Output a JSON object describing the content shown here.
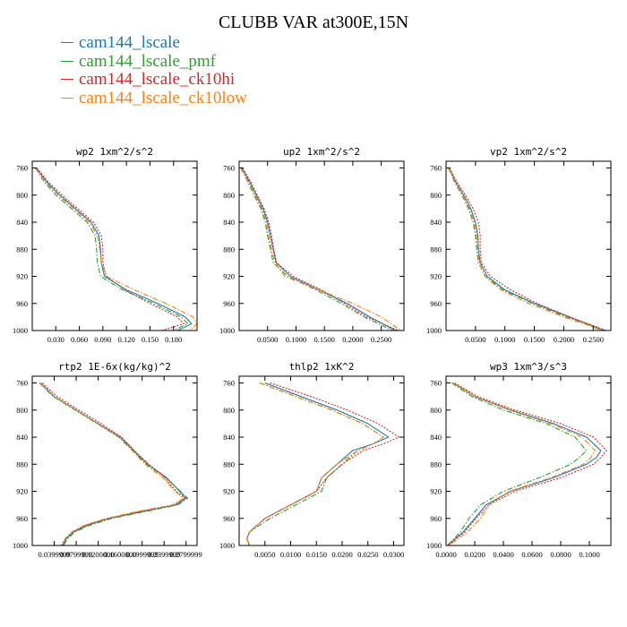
{
  "title": "CLUBB VAR at300E,15N",
  "legend": [
    {
      "label": "cam144_lscale",
      "color": "#1f77b4",
      "dash": "solid"
    },
    {
      "label": "cam144_lscale_pmf",
      "color": "#2ca02c",
      "dash": "dashdot"
    },
    {
      "label": "cam144_lscale_ck10hi",
      "color": "#d62728",
      "dash": "dotted"
    },
    {
      "label": "cam144_lscale_ck10low",
      "color": "#ff7f0e",
      "dash": "dashdot"
    }
  ],
  "chart_data": [
    {
      "type": "line",
      "title": "wp2  1xm^2/s^2",
      "ylim": [
        1000,
        750
      ],
      "yticks": [
        "760",
        "800",
        "840",
        "880",
        "920",
        "960",
        "1000"
      ],
      "xlim": [
        0.0,
        0.21
      ],
      "xticks": [
        [
          "0.030",
          0.03
        ],
        [
          "0.060",
          0.06
        ],
        [
          "0.090",
          0.09
        ],
        [
          "0.120",
          0.12
        ],
        [
          "0.150",
          0.15
        ],
        [
          "0.180",
          0.18
        ]
      ],
      "y": [
        760,
        780,
        800,
        820,
        840,
        860,
        880,
        900,
        920,
        940,
        960,
        980,
        990,
        1000
      ],
      "series": [
        {
          "name": "cam144_lscale",
          "values": [
            0.005,
            0.018,
            0.035,
            0.055,
            0.075,
            0.085,
            0.087,
            0.088,
            0.092,
            0.12,
            0.16,
            0.195,
            0.203,
            0.185
          ]
        },
        {
          "name": "cam144_lscale_pmf",
          "values": [
            0.004,
            0.015,
            0.03,
            0.05,
            0.07,
            0.08,
            0.082,
            0.083,
            0.087,
            0.115,
            0.155,
            0.19,
            0.198,
            0.18
          ]
        },
        {
          "name": "cam144_lscale_ck10hi",
          "values": [
            0.006,
            0.02,
            0.038,
            0.058,
            0.078,
            0.088,
            0.09,
            0.09,
            0.094,
            0.118,
            0.15,
            0.185,
            0.193,
            0.165
          ]
        },
        {
          "name": "cam144_lscale_ck10low",
          "values": [
            0.004,
            0.016,
            0.033,
            0.053,
            0.073,
            0.083,
            0.086,
            0.088,
            0.095,
            0.13,
            0.17,
            0.205,
            0.21,
            0.2
          ]
        }
      ]
    },
    {
      "type": "line",
      "title": "up2  1xm^2/s^2",
      "ylim": [
        1000,
        750
      ],
      "yticks": [
        "760",
        "800",
        "840",
        "880",
        "920",
        "960",
        "1000"
      ],
      "xlim": [
        0.0,
        0.29
      ],
      "xticks": [
        [
          "0.0500",
          0.05
        ],
        [
          "0.1000",
          0.1
        ],
        [
          "0.1500",
          0.15
        ],
        [
          "0.2000",
          0.2
        ],
        [
          "0.2500",
          0.25
        ]
      ],
      "y": [
        760,
        780,
        800,
        820,
        840,
        860,
        880,
        900,
        920,
        940,
        960,
        980,
        1000
      ],
      "series": [
        {
          "name": "cam144_lscale",
          "values": [
            0.005,
            0.018,
            0.03,
            0.042,
            0.05,
            0.055,
            0.06,
            0.065,
            0.09,
            0.14,
            0.19,
            0.23,
            0.275
          ]
        },
        {
          "name": "cam144_lscale_pmf",
          "values": [
            0.003,
            0.015,
            0.026,
            0.038,
            0.046,
            0.05,
            0.055,
            0.06,
            0.085,
            0.135,
            0.18,
            0.22,
            0.27
          ]
        },
        {
          "name": "cam144_lscale_ck10hi",
          "values": [
            0.006,
            0.02,
            0.032,
            0.044,
            0.052,
            0.057,
            0.061,
            0.066,
            0.095,
            0.145,
            0.185,
            0.225,
            0.28
          ]
        },
        {
          "name": "cam144_lscale_ck10low",
          "values": [
            0.004,
            0.016,
            0.028,
            0.04,
            0.048,
            0.052,
            0.057,
            0.063,
            0.08,
            0.14,
            0.2,
            0.25,
            0.285
          ]
        }
      ]
    },
    {
      "type": "line",
      "title": "vp2  1xm^2/s^2",
      "ylim": [
        1000,
        750
      ],
      "yticks": [
        "760",
        "800",
        "840",
        "880",
        "920",
        "960",
        "1000"
      ],
      "xlim": [
        0.0,
        0.28
      ],
      "xticks": [
        [
          "0.0500",
          0.05
        ],
        [
          "0.1000",
          0.1
        ],
        [
          "0.1500",
          0.15
        ],
        [
          "0.2000",
          0.2
        ],
        [
          "0.2500",
          0.25
        ]
      ],
      "y": [
        760,
        780,
        800,
        820,
        840,
        860,
        880,
        900,
        920,
        940,
        960,
        980,
        1000
      ],
      "series": [
        {
          "name": "cam144_lscale",
          "values": [
            0.005,
            0.016,
            0.03,
            0.042,
            0.05,
            0.054,
            0.055,
            0.058,
            0.07,
            0.1,
            0.15,
            0.21,
            0.27
          ]
        },
        {
          "name": "cam144_lscale_pmf",
          "values": [
            0.004,
            0.014,
            0.027,
            0.038,
            0.046,
            0.05,
            0.052,
            0.055,
            0.067,
            0.097,
            0.147,
            0.205,
            0.265
          ]
        },
        {
          "name": "cam144_lscale_ck10hi",
          "values": [
            0.006,
            0.018,
            0.033,
            0.046,
            0.055,
            0.058,
            0.058,
            0.06,
            0.075,
            0.11,
            0.155,
            0.21,
            0.272
          ]
        },
        {
          "name": "cam144_lscale_ck10low",
          "values": [
            0.005,
            0.015,
            0.028,
            0.04,
            0.048,
            0.052,
            0.054,
            0.056,
            0.066,
            0.093,
            0.14,
            0.2,
            0.268
          ]
        }
      ]
    },
    {
      "type": "line",
      "title": "rtp2  1E-6x(kg/kg)^2",
      "ylim": [
        1000,
        750
      ],
      "yticks": [
        "760",
        "800",
        "840",
        "880",
        "920",
        "960",
        "1000"
      ],
      "xlim": [
        0.0,
        0.3
      ],
      "xticks": [
        [
          "0.0399999",
          0.04
        ],
        [
          "0.0799999",
          0.08
        ],
        [
          "0.1200000",
          0.12
        ],
        [
          "0.1600000",
          0.16
        ],
        [
          "0.1999999",
          0.2
        ],
        [
          "0.2399999",
          0.24
        ],
        [
          "0.2799999",
          0.28
        ]
      ],
      "y": [
        760,
        780,
        800,
        820,
        840,
        860,
        880,
        900,
        920,
        930,
        940,
        950,
        960,
        970,
        980,
        990,
        1000
      ],
      "series": [
        {
          "name": "cam144_lscale",
          "values": [
            0.015,
            0.04,
            0.08,
            0.12,
            0.16,
            0.185,
            0.21,
            0.245,
            0.268,
            0.28,
            0.262,
            0.2,
            0.14,
            0.1,
            0.075,
            0.062,
            0.055
          ]
        },
        {
          "name": "cam144_lscale_pmf",
          "values": [
            0.013,
            0.038,
            0.078,
            0.118,
            0.158,
            0.183,
            0.208,
            0.243,
            0.27,
            0.283,
            0.265,
            0.205,
            0.145,
            0.105,
            0.078,
            0.064,
            0.057
          ]
        },
        {
          "name": "cam144_lscale_ck10hi",
          "values": [
            0.018,
            0.045,
            0.085,
            0.125,
            0.163,
            0.186,
            0.212,
            0.242,
            0.262,
            0.278,
            0.258,
            0.195,
            0.138,
            0.098,
            0.073,
            0.06,
            0.053
          ]
        },
        {
          "name": "cam144_lscale_ck10low",
          "values": [
            0.014,
            0.04,
            0.08,
            0.118,
            0.157,
            0.182,
            0.205,
            0.238,
            0.26,
            0.276,
            0.256,
            0.19,
            0.135,
            0.095,
            0.072,
            0.06,
            0.052
          ]
        }
      ]
    },
    {
      "type": "line",
      "title": "thlp2  1xK^2",
      "ylim": [
        1000,
        750
      ],
      "yticks": [
        "760",
        "800",
        "840",
        "880",
        "920",
        "960",
        "1000"
      ],
      "xlim": [
        0.0,
        0.032
      ],
      "xticks": [
        [
          "0.0050",
          0.005
        ],
        [
          "0.0100",
          0.01
        ],
        [
          "0.0150",
          0.015
        ],
        [
          "0.0200",
          0.02
        ],
        [
          "0.0250",
          0.025
        ],
        [
          "0.0300",
          0.03
        ]
      ],
      "y": [
        760,
        780,
        800,
        820,
        840,
        850,
        860,
        880,
        900,
        920,
        940,
        960,
        980,
        990,
        1000
      ],
      "series": [
        {
          "name": "cam144_lscale",
          "values": [
            0.005,
            0.012,
            0.019,
            0.025,
            0.029,
            0.026,
            0.022,
            0.019,
            0.016,
            0.015,
            0.01,
            0.005,
            0.002,
            0.0015,
            0.002
          ]
        },
        {
          "name": "cam144_lscale_pmf",
          "values": [
            0.004,
            0.011,
            0.018,
            0.024,
            0.028,
            0.026,
            0.023,
            0.02,
            0.017,
            0.016,
            0.011,
            0.006,
            0.002,
            0.0015,
            0.002
          ]
        },
        {
          "name": "cam144_lscale_ck10hi",
          "values": [
            0.006,
            0.014,
            0.021,
            0.027,
            0.031,
            0.028,
            0.024,
            0.02,
            0.017,
            0.015,
            0.01,
            0.005,
            0.002,
            0.0015,
            0.002
          ]
        },
        {
          "name": "cam144_lscale_ck10low",
          "values": [
            0.004,
            0.011,
            0.018,
            0.024,
            0.028,
            0.026,
            0.023,
            0.019,
            0.016,
            0.015,
            0.01,
            0.005,
            0.002,
            0.0015,
            0.002
          ]
        }
      ]
    },
    {
      "type": "line",
      "title": "wp3  1xm^3/s^3",
      "ylim": [
        1000,
        750
      ],
      "yticks": [
        "760",
        "800",
        "840",
        "880",
        "920",
        "960",
        "1000"
      ],
      "xlim": [
        0.0,
        0.115
      ],
      "xticks": [
        [
          "0.0000",
          0.0
        ],
        [
          "0.0200",
          0.02
        ],
        [
          "0.0400",
          0.04
        ],
        [
          "0.0600",
          0.06
        ],
        [
          "0.0800",
          0.08
        ],
        [
          "0.1000",
          0.1
        ]
      ],
      "y": [
        760,
        780,
        800,
        820,
        840,
        860,
        870,
        880,
        900,
        920,
        940,
        960,
        980,
        1000
      ],
      "series": [
        {
          "name": "cam144_lscale",
          "values": [
            0.005,
            0.02,
            0.045,
            0.075,
            0.098,
            0.108,
            0.105,
            0.098,
            0.075,
            0.045,
            0.028,
            0.02,
            0.012,
            0.001
          ]
        },
        {
          "name": "cam144_lscale_pmf",
          "values": [
            0.004,
            0.018,
            0.04,
            0.07,
            0.09,
            0.098,
            0.093,
            0.087,
            0.065,
            0.04,
            0.024,
            0.016,
            0.01,
            0.001
          ]
        },
        {
          "name": "cam144_lscale_ck10hi",
          "values": [
            0.006,
            0.022,
            0.048,
            0.08,
            0.103,
            0.112,
            0.108,
            0.103,
            0.08,
            0.048,
            0.03,
            0.021,
            0.013,
            0.001
          ]
        },
        {
          "name": "cam144_lscale_ck10low",
          "values": [
            0.005,
            0.02,
            0.044,
            0.073,
            0.095,
            0.104,
            0.101,
            0.096,
            0.073,
            0.044,
            0.03,
            0.024,
            0.015,
            0.002
          ]
        }
      ]
    }
  ]
}
